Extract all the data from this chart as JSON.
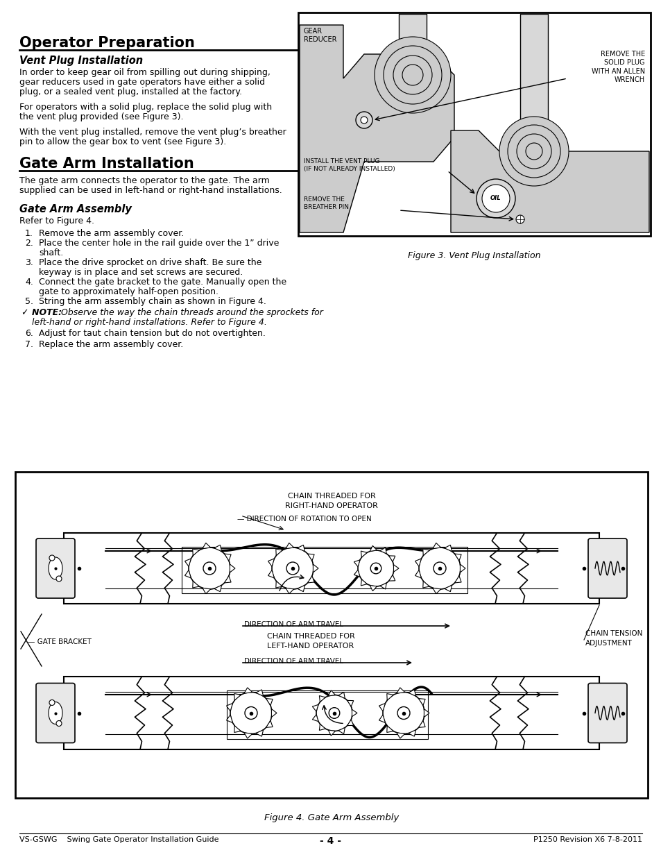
{
  "page_bg": "#ffffff",
  "title1": "Operator Preparation",
  "subtitle1": "Vent Plug Installation",
  "para1": "In order to keep gear oil from spilling out during shipping,\ngear reducers used in gate operators have either a solid\nplug, or a sealed vent plug, installed at the factory.",
  "para2": "For operators with a solid plug, replace the solid plug with\nthe vent plug provided (see Figure 3).",
  "para3": "With the vent plug installed, remove the vent plug’s breather\npin to allow the gear box to vent (see Figure 3).",
  "title2": "Gate Arm Installation",
  "para4": "The gate arm connects the operator to the gate. The arm\nsupplied can be used in left-hand or right-hand installations.",
  "subtitle2": "Gate Arm Assembly",
  "refer": "Refer to Figure 4.",
  "steps": [
    "Remove the arm assembly cover.",
    "Place the center hole in the rail guide over the 1” drive shaft.",
    "Place the drive sprocket on drive shaft. Be sure the keyway is in place and set screws are secured.",
    "Connect the gate bracket to the gate. Manually open the gate to approximately half-open position.",
    "String the arm assembly chain as shown in Figure 4."
  ],
  "steps2": [
    "Adjust for taut chain tension but do not overtighten.",
    "Replace the arm assembly cover."
  ],
  "fig3_caption": "Figure 3. Vent Plug Installation",
  "fig4_caption": "Figure 4. Gate Arm Assembly",
  "footer_left": "VS-GSWG    Swing Gate Operator Installation Guide",
  "footer_center": "- 4 -",
  "footer_right": "P1250 Revision X6 7-8-2011"
}
